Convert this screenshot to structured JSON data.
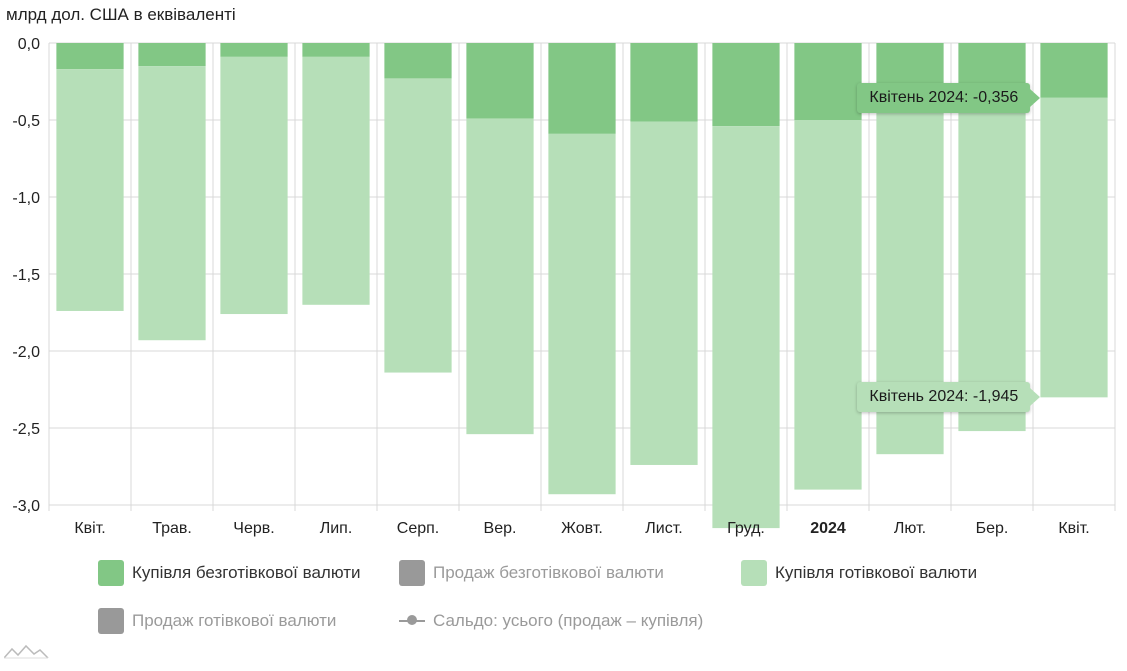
{
  "chart_data": {
    "type": "bar",
    "ylabel": "млрд дол. США в еквіваленті",
    "ylim": [
      -3.0,
      0.0
    ],
    "yticks": [
      0.0,
      -0.5,
      -1.0,
      -1.5,
      -2.0,
      -2.5,
      -3.0
    ],
    "ytick_labels": [
      "0,0",
      "-0,5",
      "-1,0",
      "-1,5",
      "-2,0",
      "-2,5",
      "-3,0"
    ],
    "categories": [
      "Квіт.",
      "Трав.",
      "Черв.",
      "Лип.",
      "Серп.",
      "Вер.",
      "Жовт.",
      "Лист.",
      "Груд.",
      "2024",
      "Лют.",
      "Бер.",
      "Квіт."
    ],
    "bold_categories": [
      "2024"
    ],
    "grid": true,
    "legend_position": "bottom",
    "series": [
      {
        "name": "Купівля безготівкової валюти",
        "color": "#82c785",
        "values": [
          -0.17,
          -0.15,
          -0.09,
          -0.09,
          -0.23,
          -0.49,
          -0.59,
          -0.51,
          -0.54,
          -0.5,
          -0.43,
          -0.38,
          -0.356
        ]
      },
      {
        "name": "Купівля готівкової валюти",
        "color": "#b6dfb8",
        "values": [
          -1.57,
          -1.78,
          -1.67,
          -1.61,
          -1.91,
          -2.05,
          -2.34,
          -2.23,
          -2.61,
          -2.4,
          -2.24,
          -2.14,
          -1.945
        ]
      }
    ],
    "legend": [
      {
        "label": "Купівля безготівкової валюти",
        "color": "#82c785",
        "active": true,
        "marker": "box"
      },
      {
        "label": "Продаж безготівкової валюти",
        "color": "#999999",
        "active": false,
        "marker": "box"
      },
      {
        "label": "Купівля готівкової валюти",
        "color": "#b6dfb8",
        "active": true,
        "marker": "box"
      },
      {
        "label": "Продаж готівкової валюти",
        "color": "#999999",
        "active": false,
        "marker": "box"
      },
      {
        "label": "Сальдо: усього (продаж – купівля)",
        "color": "#999999",
        "active": false,
        "marker": "line"
      }
    ],
    "tooltips": [
      {
        "text": "Квітень 2024: -0,356",
        "series": "Купівля безготівкової валюти"
      },
      {
        "text": "Квітень 2024: -1,945",
        "series": "Купівля готівкової валюти"
      }
    ]
  }
}
